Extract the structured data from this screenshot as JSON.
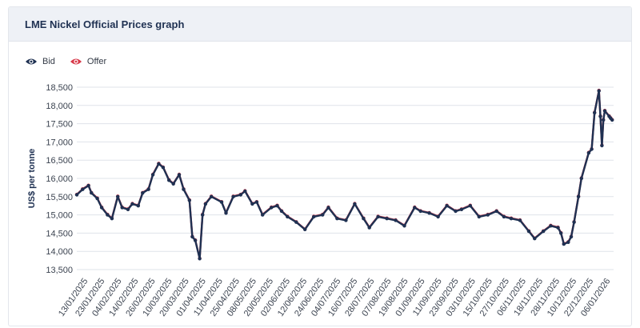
{
  "panel": {
    "title": "LME Nickel Official Prices graph"
  },
  "colors": {
    "bid": "#1f3152",
    "offer": "#d83a4a",
    "grid": "#dfe3ea"
  },
  "legend": [
    {
      "label": "Bid",
      "icon": "eye-icon",
      "color": "#1f3152"
    },
    {
      "label": "Offer",
      "icon": "eye-icon",
      "color": "#d83a4a"
    }
  ],
  "chart_data": {
    "type": "line",
    "ylabel": "US$ per tonne",
    "ylim": [
      13500,
      18500
    ],
    "yticks": [
      13500,
      14000,
      14500,
      15000,
      15500,
      16000,
      16500,
      17000,
      17500,
      18000,
      18500
    ],
    "ytick_labels": [
      "13,500",
      "14,000",
      "14,500",
      "15,000",
      "15,500",
      "16,000",
      "16,500",
      "17,000",
      "17,500",
      "18,000",
      "18,500"
    ],
    "xlim": [
      "2025-01-13",
      "2026-01-15"
    ],
    "xtick_labels": [
      "13/01/2025",
      "23/01/2025",
      "04/02/2025",
      "14/02/2025",
      "26/02/2025",
      "10/03/2025",
      "20/03/2025",
      "01/04/2025",
      "11/04/2025",
      "25/04/2025",
      "08/05/2025",
      "20/05/2025",
      "02/06/2025",
      "12/06/2025",
      "24/06/2025",
      "04/07/2025",
      "16/07/2025",
      "28/07/2025",
      "07/08/2025",
      "19/08/2025",
      "01/09/2025",
      "11/09/2025",
      "23/09/2025",
      "03/10/2025",
      "15/10/2025",
      "27/10/2025",
      "06/11/2025",
      "18/11/2025",
      "28/11/2025",
      "10/12/2025",
      "22/12/2025",
      "06/01/2026"
    ],
    "grid": true,
    "legend_position": "top-left",
    "x": [
      "2025-01-13",
      "2025-01-17",
      "2025-01-21",
      "2025-01-23",
      "2025-01-27",
      "2025-01-30",
      "2025-02-03",
      "2025-02-06",
      "2025-02-10",
      "2025-02-13",
      "2025-02-17",
      "2025-02-20",
      "2025-02-24",
      "2025-02-27",
      "2025-03-03",
      "2025-03-06",
      "2025-03-10",
      "2025-03-13",
      "2025-03-17",
      "2025-03-20",
      "2025-03-24",
      "2025-03-27",
      "2025-03-31",
      "2025-04-02",
      "2025-04-04",
      "2025-04-07",
      "2025-04-09",
      "2025-04-11",
      "2025-04-15",
      "2025-04-22",
      "2025-04-25",
      "2025-04-30",
      "2025-05-05",
      "2025-05-08",
      "2025-05-13",
      "2025-05-16",
      "2025-05-20",
      "2025-05-26",
      "2025-05-30",
      "2025-06-02",
      "2025-06-06",
      "2025-06-12",
      "2025-06-18",
      "2025-06-24",
      "2025-06-30",
      "2025-07-04",
      "2025-07-10",
      "2025-07-16",
      "2025-07-22",
      "2025-07-28",
      "2025-08-01",
      "2025-08-07",
      "2025-08-13",
      "2025-08-19",
      "2025-08-25",
      "2025-09-01",
      "2025-09-05",
      "2025-09-11",
      "2025-09-17",
      "2025-09-23",
      "2025-09-29",
      "2025-10-03",
      "2025-10-09",
      "2025-10-15",
      "2025-10-21",
      "2025-10-27",
      "2025-11-01",
      "2025-11-06",
      "2025-11-12",
      "2025-11-18",
      "2025-11-22",
      "2025-11-28",
      "2025-12-03",
      "2025-12-08",
      "2025-12-10",
      "2025-12-12",
      "2025-12-15",
      "2025-12-17",
      "2025-12-19",
      "2025-12-22",
      "2025-12-24",
      "2025-12-29",
      "2025-12-31",
      "2026-01-02",
      "2026-01-05",
      "2026-01-06",
      "2026-01-07",
      "2026-01-08",
      "2026-01-09",
      "2026-01-12",
      "2026-01-13",
      "2026-01-14"
    ],
    "series": [
      {
        "name": "Bid",
        "color": "#1f3152",
        "values": [
          15550,
          15700,
          15800,
          15600,
          15450,
          15200,
          15000,
          14900,
          15500,
          15200,
          15150,
          15300,
          15250,
          15600,
          15700,
          16100,
          16400,
          16300,
          15950,
          15850,
          16100,
          15700,
          15400,
          14400,
          14300,
          13800,
          15000,
          15300,
          15500,
          15350,
          15050,
          15500,
          15550,
          15650,
          15300,
          15350,
          15000,
          15200,
          15250,
          15100,
          14950,
          14800,
          14600,
          14950,
          15000,
          15200,
          14900,
          14850,
          15300,
          14900,
          14650,
          14950,
          14900,
          14850,
          14700,
          15200,
          15100,
          15050,
          14950,
          15250,
          15100,
          15150,
          15250,
          14950,
          15000,
          15100,
          14950,
          14900,
          14850,
          14550,
          14350,
          14550,
          14700,
          14650,
          14500,
          14200,
          14250,
          14400,
          14800,
          15500,
          16000,
          16700,
          16800,
          17800,
          18400,
          17700,
          16900,
          17600,
          17850,
          17700,
          17650,
          17600
        ]
      },
      {
        "name": "Offer",
        "color": "#d83a4a",
        "values": [
          15560,
          15710,
          15810,
          15610,
          15460,
          15210,
          15010,
          14910,
          15510,
          15210,
          15160,
          15310,
          15260,
          15610,
          15710,
          16110,
          16410,
          16310,
          15960,
          15860,
          16110,
          15710,
          15410,
          14410,
          14310,
          13810,
          15010,
          15310,
          15510,
          15360,
          15060,
          15510,
          15560,
          15660,
          15310,
          15360,
          15010,
          15210,
          15260,
          15110,
          14960,
          14810,
          14610,
          14960,
          15010,
          15210,
          14910,
          14860,
          15310,
          14910,
          14660,
          14960,
          14910,
          14860,
          14710,
          15210,
          15110,
          15060,
          14960,
          15260,
          15110,
          15160,
          15260,
          14960,
          15010,
          15110,
          14960,
          14910,
          14860,
          14560,
          14360,
          14560,
          14710,
          14660,
          14510,
          14210,
          14260,
          14410,
          14810,
          15510,
          16010,
          16710,
          16810,
          17810,
          18410,
          17710,
          16910,
          17610,
          17860,
          17710,
          17660,
          17610
        ]
      }
    ]
  }
}
